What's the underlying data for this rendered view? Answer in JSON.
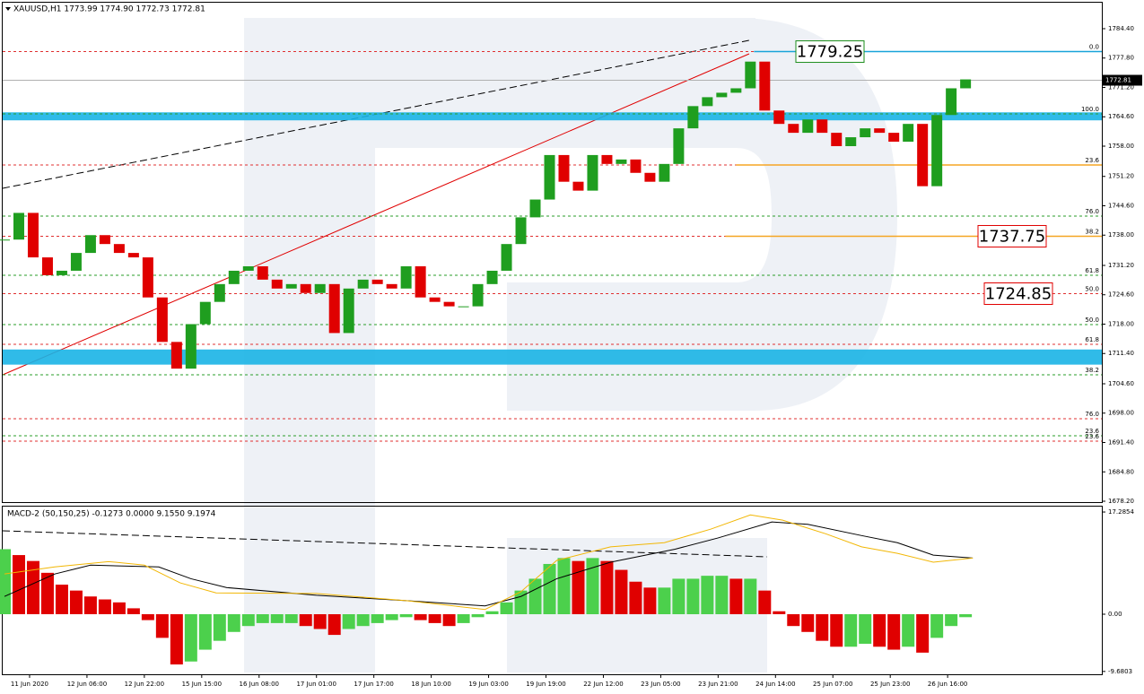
{
  "chart_data": [
    {
      "type": "candlestick",
      "title": "XAUUSD,H1  1773.99 1774.90 1772.73 1772.81",
      "up_color": "#1f9e1f",
      "down_color": "#e00000",
      "x": [
        0,
        4,
        8,
        12,
        16,
        20,
        24,
        28,
        32,
        36,
        40,
        44,
        48,
        52,
        56,
        60,
        64,
        68,
        72,
        76,
        80,
        84,
        88,
        92,
        96,
        100,
        104,
        108,
        112,
        116,
        120,
        124,
        128,
        132,
        136,
        140,
        144,
        148,
        152,
        156,
        160,
        164,
        168,
        172,
        176,
        180,
        184,
        188,
        192,
        196,
        200,
        204,
        208,
        212,
        216,
        220,
        224,
        228,
        232,
        236,
        240,
        244,
        248,
        252,
        256,
        260,
        264,
        268
      ],
      "values": [
        1737,
        1743,
        1733,
        1729,
        1730,
        1734,
        1738,
        1736,
        1734,
        1733,
        1724,
        1714,
        1708,
        1718,
        1723,
        1727,
        1730,
        1731,
        1728,
        1726,
        1727,
        1725,
        1727,
        1716,
        1726,
        1728,
        1727,
        1726,
        1731,
        1724,
        1723,
        1722,
        1722,
        1727,
        1730,
        1736,
        1742,
        1746,
        1756,
        1750,
        1748,
        1756,
        1754,
        1755,
        1752,
        1750,
        1754,
        1762,
        1767,
        1769,
        1770,
        1771,
        1777,
        1766,
        1763,
        1761,
        1764,
        1761,
        1758,
        1760,
        1762,
        1761,
        1759,
        1763,
        1749,
        1765,
        1771,
        1773
      ],
      "xlim": [
        -0.5,
        306
      ],
      "ylim": [
        1678.0,
        1790.24
      ],
      "xticks": [
        {
          "value": 7,
          "label": "11 Jun 2020"
        },
        {
          "value": 23,
          "label": "12 Jun 06:00"
        },
        {
          "value": 39,
          "label": "12 Jun 22:00"
        },
        {
          "value": 55,
          "label": "15 Jun 15:00"
        },
        {
          "value": 71,
          "label": "16 Jun 08:00"
        },
        {
          "value": 87,
          "label": "17 Jun 01:00"
        },
        {
          "value": 103,
          "label": "17 Jun 17:00"
        },
        {
          "value": 119,
          "label": "18 Jun 10:00"
        },
        {
          "value": 135,
          "label": "19 Jun 03:00"
        },
        {
          "value": 151,
          "label": "19 Jun 19:00"
        },
        {
          "value": 167,
          "label": "22 Jun 12:00"
        },
        {
          "value": 183,
          "label": "23 Jun 05:00"
        },
        {
          "value": 199,
          "label": "23 Jun 21:00"
        },
        {
          "value": 215,
          "label": "24 Jun 14:00"
        },
        {
          "value": 231,
          "label": "25 Jun 07:00"
        },
        {
          "value": 247,
          "label": "25 Jun 23:00"
        },
        {
          "value": 263,
          "label": "26 Jun 16:00"
        }
      ],
      "yticks": [
        {
          "value": 1784.4,
          "label": "1784.40"
        },
        {
          "value": 1777.8,
          "label": "1777.80"
        },
        {
          "value": 1771.2,
          "label": "1771.20"
        },
        {
          "value": 1764.6,
          "label": "1764.60"
        },
        {
          "value": 1758,
          "label": "1758.00"
        },
        {
          "value": 1751.2,
          "label": "1751.20"
        },
        {
          "value": 1744.6,
          "label": "1744.60"
        },
        {
          "value": 1738,
          "label": "1738.00"
        },
        {
          "value": 1731.2,
          "label": "1731.20"
        },
        {
          "value": 1724.6,
          "label": "1724.60"
        },
        {
          "value": 1718,
          "label": "1718.00"
        },
        {
          "value": 1711.4,
          "label": "1711.40"
        },
        {
          "value": 1704.6,
          "label": "1704.60"
        },
        {
          "value": 1698,
          "label": "1698.00"
        },
        {
          "value": 1691.4,
          "label": "1691.40"
        },
        {
          "value": 1684.8,
          "label": "1684.80"
        },
        {
          "value": 1678.2,
          "label": "1678.20"
        }
      ],
      "zones": [
        {
          "from": 1763.8,
          "to": 1765.6,
          "color": "#19b4e6"
        },
        {
          "from": 1708.9,
          "to": 1712.3,
          "color": "#19b4e6"
        }
      ],
      "levels": [
        {
          "value": 1779.25,
          "label": "0.0",
          "color": "#e03030"
        },
        {
          "value": 1765.25,
          "label": "100.0",
          "color": "#2a9d2a"
        },
        {
          "value": 1753.77,
          "label": "23.6",
          "color": "#e03030"
        },
        {
          "value": 1742.28,
          "label": "76.0",
          "color": "#2a9d2a"
        },
        {
          "value": 1737.75,
          "label": "38.2",
          "color": "#e03030"
        },
        {
          "value": 1728.98,
          "label": "61.8",
          "color": "#2a9d2a"
        },
        {
          "value": 1724.85,
          "label": "50.0",
          "color": "#e03030"
        },
        {
          "value": 1717.89,
          "label": "50.0",
          "color": "#2a9d2a"
        },
        {
          "value": 1713.46,
          "label": "61.8",
          "color": "#e03030"
        },
        {
          "value": 1706.61,
          "label": "38.2",
          "color": "#2a9d2a"
        },
        {
          "value": 1696.73,
          "label": "76.0",
          "color": "#e03030"
        },
        {
          "value": 1692.9,
          "label": "23.6",
          "color": "#2a9d2a"
        },
        {
          "value": 1691.7,
          "label": "23.6",
          "color": "#e03030"
        }
      ],
      "hlines": [
        {
          "value": 1779.25,
          "x0": 209,
          "color": "#19a3d9"
        },
        {
          "value": 1753.77,
          "x0": 204,
          "color": "#f5a623"
        },
        {
          "value": 1737.75,
          "x0": 201,
          "color": "#f5a623"
        }
      ],
      "annotations": [
        {
          "value": 1779.25,
          "color": "#1a8c1a"
        },
        {
          "value": 1737.75,
          "color": "#e00000"
        },
        {
          "value": 1724.85,
          "color": "#e00000"
        }
      ],
      "last": 1772.81
    },
    {
      "type": "macd",
      "title": "MACD-2 (50,150,25) -0.1273 0.0000 9.1550 9.1974",
      "up_color": "#4cd04c",
      "down_color": "#e00000",
      "x": [
        0,
        4,
        8,
        12,
        16,
        20,
        24,
        28,
        32,
        36,
        40,
        44,
        48,
        52,
        56,
        60,
        64,
        68,
        72,
        76,
        80,
        84,
        88,
        92,
        96,
        100,
        104,
        108,
        112,
        116,
        120,
        124,
        128,
        132,
        136,
        140,
        144,
        148,
        152,
        156,
        160,
        164,
        168,
        172,
        176,
        180,
        184,
        188,
        192,
        196,
        200,
        204,
        208,
        212,
        216,
        220,
        224,
        228,
        232,
        236,
        240,
        244,
        248,
        252,
        256,
        260,
        264,
        268
      ],
      "values": [
        11,
        10,
        9,
        7,
        5,
        4,
        3,
        2.5,
        2,
        1,
        -1,
        -4,
        -8.5,
        -8,
        -6,
        -4.5,
        -3,
        -2,
        -1.5,
        -1.5,
        -1.5,
        -2,
        -2.5,
        -3.5,
        -2.5,
        -2,
        -1.5,
        -1,
        -0.5,
        -1,
        -1.5,
        -2,
        -1.5,
        -0.5,
        0.5,
        2,
        4,
        6,
        8.5,
        9.5,
        9,
        9.5,
        9,
        7.5,
        5.5,
        4.5,
        4.5,
        6,
        6,
        6.5,
        6.5,
        6,
        6,
        4,
        0.5,
        -2,
        -3,
        -4.5,
        -5.5,
        -5.5,
        -5,
        -5.5,
        -6,
        -5.5,
        -6.5,
        -4,
        -2,
        -0.5
      ],
      "series": [
        {
          "color": "#000000",
          "x": [
            0,
            14,
            24,
            43,
            52,
            62,
            87,
            112,
            134,
            144,
            154,
            169,
            187,
            199,
            214,
            224,
            239,
            249,
            259,
            270
          ],
          "values": [
            3,
            6.8,
            8.3,
            8,
            6,
            4.5,
            3.2,
            2.3,
            1.4,
            3,
            6,
            8.8,
            11,
            12.9,
            15.6,
            15.2,
            13.3,
            12.1,
            10,
            9.5
          ]
        },
        {
          "color": "#f2b705",
          "x": [
            0,
            14,
            29,
            39,
            49,
            59,
            87,
            112,
            134,
            144,
            154,
            169,
            184,
            197,
            208,
            217,
            229,
            239,
            249,
            259,
            270
          ],
          "values": [
            6.8,
            8,
            8.9,
            8.3,
            5.3,
            3.6,
            3.5,
            2.3,
            0.8,
            3.8,
            9.1,
            11.4,
            12.1,
            14.4,
            16.8,
            15.9,
            13.6,
            11.4,
            10.3,
            8.8,
            9.5
          ]
        }
      ],
      "ylim": [
        -10.16,
        18.2
      ],
      "yticks": [
        17.2854,
        {
          "value": 0,
          "label": "0.00"
        },
        -9.6803
      ]
    }
  ]
}
